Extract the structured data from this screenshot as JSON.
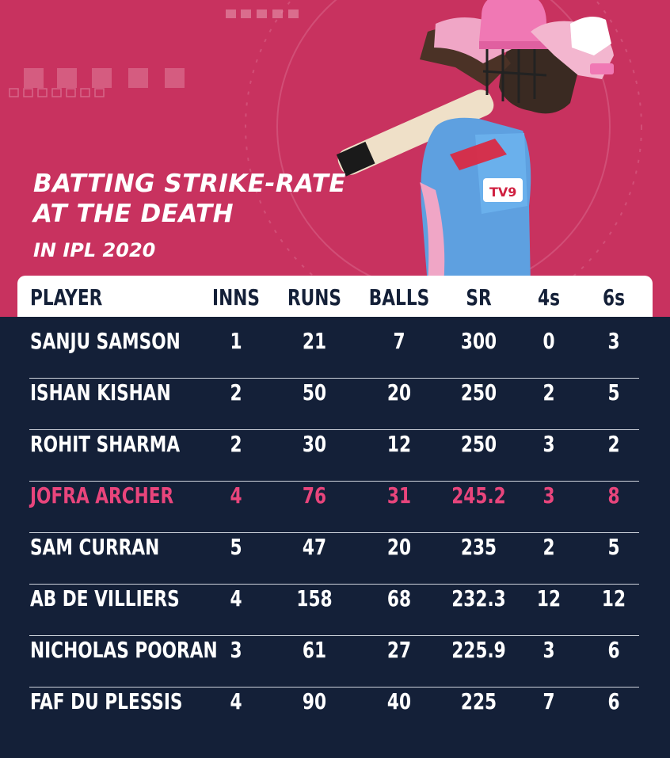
{
  "title": {
    "line1": "BATTING STRIKE-RATE",
    "line2": "AT THE DEATH",
    "line3": "IN IPL 2020"
  },
  "colors": {
    "hero_bg": "#c8325f",
    "table_bg": "#142038",
    "highlight": "#e8457c",
    "header_text": "#142038"
  },
  "table": {
    "headers": [
      "PLAYER",
      "INNS",
      "RUNS",
      "BALLS",
      "SR",
      "4s",
      "6s"
    ],
    "highlight_row": 3,
    "rows": [
      [
        "SANJU SAMSON",
        "1",
        "21",
        "7",
        "300",
        "0",
        "3"
      ],
      [
        "ISHAN KISHAN",
        "2",
        "50",
        "20",
        "250",
        "2",
        "5"
      ],
      [
        "ROHIT SHARMA",
        "2",
        "30",
        "12",
        "250",
        "3",
        "2"
      ],
      [
        "JOFRA ARCHER",
        "4",
        "76",
        "31",
        "245.2",
        "3",
        "8"
      ],
      [
        "SAM CURRAN",
        "5",
        "47",
        "20",
        "235",
        "2",
        "5"
      ],
      [
        "AB DE VILLIERS",
        "4",
        "158",
        "68",
        "232.3",
        "12",
        "12"
      ],
      [
        "NICHOLAS POORAN",
        "3",
        "61",
        "27",
        "225.9",
        "3",
        "6"
      ],
      [
        "FAF DU PLESSIS",
        "4",
        "90",
        "40",
        "225",
        "7",
        "6"
      ]
    ]
  }
}
